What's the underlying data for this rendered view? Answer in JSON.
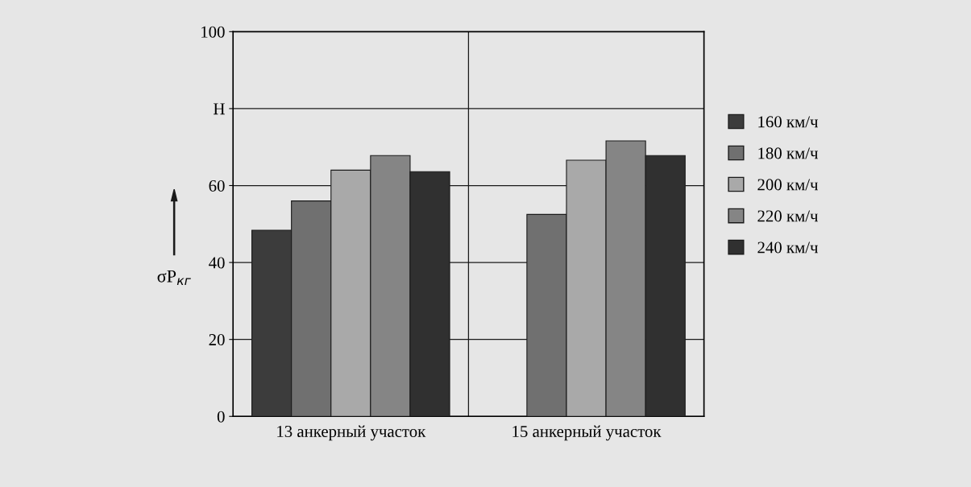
{
  "chart_data": {
    "type": "bar",
    "categories": [
      "13 анкерный участок",
      "15 анкерный участок"
    ],
    "series": [
      {
        "name": "160 км/ч",
        "color": "#3c3c3c",
        "values": [
          48.4,
          null
        ]
      },
      {
        "name": "180 км/ч",
        "color": "#707070",
        "values": [
          56,
          52.5
        ]
      },
      {
        "name": "200 км/ч",
        "color": "#a9a9a9",
        "values": [
          64,
          66.6
        ]
      },
      {
        "name": "220 км/ч",
        "color": "#858585",
        "values": [
          67.8,
          71.6
        ]
      },
      {
        "name": "240 км/ч",
        "color": "#303030",
        "values": [
          63.6,
          67.8
        ]
      }
    ],
    "ylabel": "σP$_{кг}$",
    "ylim": [
      0,
      100
    ],
    "yticks": [
      0,
      20,
      40,
      60,
      {
        "value": 80,
        "label": "H"
      },
      100
    ],
    "grid": true,
    "legend": "right"
  }
}
